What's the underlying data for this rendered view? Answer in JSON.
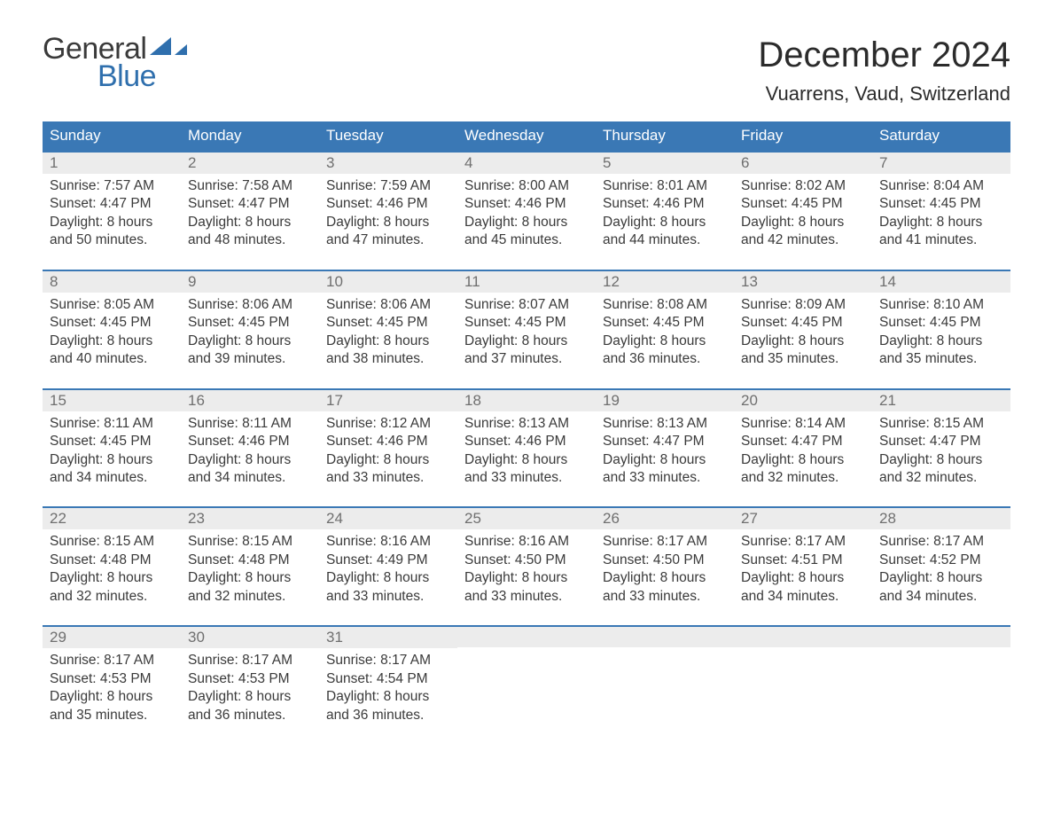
{
  "brand": {
    "part1": "General",
    "part2": "Blue",
    "color1": "#3a3a3a",
    "color2": "#2f6fad"
  },
  "header": {
    "title": "December 2024",
    "location": "Vuarrens, Vaud, Switzerland"
  },
  "styling": {
    "header_bg": "#3a78b5",
    "header_fg": "#ffffff",
    "daynum_bg": "#ececec",
    "daynum_fg": "#6f6f6f",
    "rule_color": "#3a78b5",
    "body_bg": "#ffffff",
    "text_color": "#3a3a3a",
    "title_fontsize": 40,
    "subtitle_fontsize": 22,
    "weekday_fontsize": 17,
    "cell_fontsize": 15.5
  },
  "weekdays": [
    "Sunday",
    "Monday",
    "Tuesday",
    "Wednesday",
    "Thursday",
    "Friday",
    "Saturday"
  ],
  "days": [
    {
      "n": 1,
      "sunrise": "7:57 AM",
      "sunset": "4:47 PM",
      "dh": 8,
      "dm": 50
    },
    {
      "n": 2,
      "sunrise": "7:58 AM",
      "sunset": "4:47 PM",
      "dh": 8,
      "dm": 48
    },
    {
      "n": 3,
      "sunrise": "7:59 AM",
      "sunset": "4:46 PM",
      "dh": 8,
      "dm": 47
    },
    {
      "n": 4,
      "sunrise": "8:00 AM",
      "sunset": "4:46 PM",
      "dh": 8,
      "dm": 45
    },
    {
      "n": 5,
      "sunrise": "8:01 AM",
      "sunset": "4:46 PM",
      "dh": 8,
      "dm": 44
    },
    {
      "n": 6,
      "sunrise": "8:02 AM",
      "sunset": "4:45 PM",
      "dh": 8,
      "dm": 42
    },
    {
      "n": 7,
      "sunrise": "8:04 AM",
      "sunset": "4:45 PM",
      "dh": 8,
      "dm": 41
    },
    {
      "n": 8,
      "sunrise": "8:05 AM",
      "sunset": "4:45 PM",
      "dh": 8,
      "dm": 40
    },
    {
      "n": 9,
      "sunrise": "8:06 AM",
      "sunset": "4:45 PM",
      "dh": 8,
      "dm": 39
    },
    {
      "n": 10,
      "sunrise": "8:06 AM",
      "sunset": "4:45 PM",
      "dh": 8,
      "dm": 38
    },
    {
      "n": 11,
      "sunrise": "8:07 AM",
      "sunset": "4:45 PM",
      "dh": 8,
      "dm": 37
    },
    {
      "n": 12,
      "sunrise": "8:08 AM",
      "sunset": "4:45 PM",
      "dh": 8,
      "dm": 36
    },
    {
      "n": 13,
      "sunrise": "8:09 AM",
      "sunset": "4:45 PM",
      "dh": 8,
      "dm": 35
    },
    {
      "n": 14,
      "sunrise": "8:10 AM",
      "sunset": "4:45 PM",
      "dh": 8,
      "dm": 35
    },
    {
      "n": 15,
      "sunrise": "8:11 AM",
      "sunset": "4:45 PM",
      "dh": 8,
      "dm": 34
    },
    {
      "n": 16,
      "sunrise": "8:11 AM",
      "sunset": "4:46 PM",
      "dh": 8,
      "dm": 34
    },
    {
      "n": 17,
      "sunrise": "8:12 AM",
      "sunset": "4:46 PM",
      "dh": 8,
      "dm": 33
    },
    {
      "n": 18,
      "sunrise": "8:13 AM",
      "sunset": "4:46 PM",
      "dh": 8,
      "dm": 33
    },
    {
      "n": 19,
      "sunrise": "8:13 AM",
      "sunset": "4:47 PM",
      "dh": 8,
      "dm": 33
    },
    {
      "n": 20,
      "sunrise": "8:14 AM",
      "sunset": "4:47 PM",
      "dh": 8,
      "dm": 32
    },
    {
      "n": 21,
      "sunrise": "8:15 AM",
      "sunset": "4:47 PM",
      "dh": 8,
      "dm": 32
    },
    {
      "n": 22,
      "sunrise": "8:15 AM",
      "sunset": "4:48 PM",
      "dh": 8,
      "dm": 32
    },
    {
      "n": 23,
      "sunrise": "8:15 AM",
      "sunset": "4:48 PM",
      "dh": 8,
      "dm": 32
    },
    {
      "n": 24,
      "sunrise": "8:16 AM",
      "sunset": "4:49 PM",
      "dh": 8,
      "dm": 33
    },
    {
      "n": 25,
      "sunrise": "8:16 AM",
      "sunset": "4:50 PM",
      "dh": 8,
      "dm": 33
    },
    {
      "n": 26,
      "sunrise": "8:17 AM",
      "sunset": "4:50 PM",
      "dh": 8,
      "dm": 33
    },
    {
      "n": 27,
      "sunrise": "8:17 AM",
      "sunset": "4:51 PM",
      "dh": 8,
      "dm": 34
    },
    {
      "n": 28,
      "sunrise": "8:17 AM",
      "sunset": "4:52 PM",
      "dh": 8,
      "dm": 34
    },
    {
      "n": 29,
      "sunrise": "8:17 AM",
      "sunset": "4:53 PM",
      "dh": 8,
      "dm": 35
    },
    {
      "n": 30,
      "sunrise": "8:17 AM",
      "sunset": "4:53 PM",
      "dh": 8,
      "dm": 36
    },
    {
      "n": 31,
      "sunrise": "8:17 AM",
      "sunset": "4:54 PM",
      "dh": 8,
      "dm": 36
    }
  ],
  "labels": {
    "sunrise": "Sunrise:",
    "sunset": "Sunset:",
    "daylight": "Daylight:",
    "hours": "hours",
    "and": "and",
    "minutes": "minutes."
  },
  "start_weekday_index": 0
}
